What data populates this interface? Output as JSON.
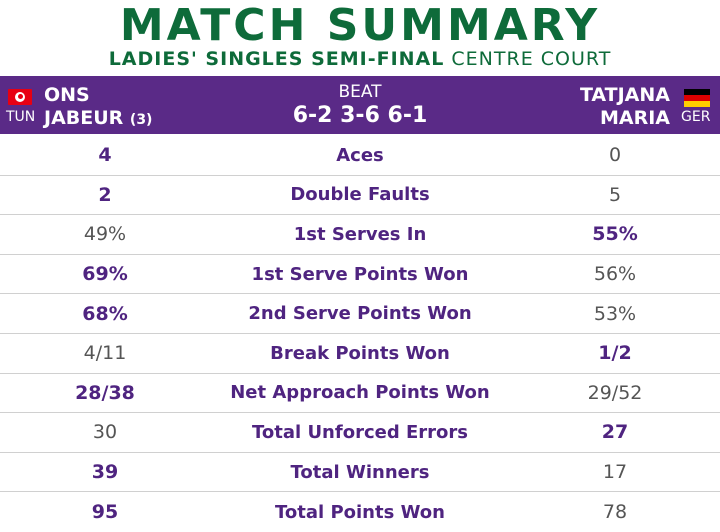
{
  "header": {
    "title": "MATCH SUMMARY",
    "subtitle_strong": "LADIES' SINGLES SEMI-FINAL",
    "subtitle_light": "CENTRE COURT"
  },
  "match": {
    "player1": {
      "first": "ONS",
      "last": "JABEUR",
      "seed": "(3)",
      "country": "TUN",
      "flag": "tunisia-flag-icon"
    },
    "player2": {
      "first": "TATJANA",
      "last": "MARIA",
      "country": "GER",
      "flag": "germany-flag-icon"
    },
    "result": "BEAT",
    "score": "6-2 3-6 6-1"
  },
  "colors": {
    "title_green": "#0e6b3a",
    "banner_purple": "#5a2a87",
    "stat_purple": "#4f2480",
    "muted_gray": "#555555"
  },
  "stats": [
    {
      "label": "Aces",
      "p1": "4",
      "p2": "0",
      "winner": "p1"
    },
    {
      "label": "Double Faults",
      "p1": "2",
      "p2": "5",
      "winner": "p1"
    },
    {
      "label": "1st Serves In",
      "p1": "49%",
      "p2": "55%",
      "winner": "p2"
    },
    {
      "label": "1st Serve Points Won",
      "p1": "69%",
      "p2": "56%",
      "winner": "p1"
    },
    {
      "label": "2nd Serve Points Won",
      "p1": "68%",
      "p2": "53%",
      "winner": "p1"
    },
    {
      "label": "Break Points Won",
      "p1": "4/11",
      "p2": "1/2",
      "winner": "p2"
    },
    {
      "label": "Net Approach Points Won",
      "p1": "28/38",
      "p2": "29/52",
      "winner": "p1"
    },
    {
      "label": "Total Unforced Errors",
      "p1": "30",
      "p2": "27",
      "winner": "p2"
    },
    {
      "label": "Total Winners",
      "p1": "39",
      "p2": "17",
      "winner": "p1"
    },
    {
      "label": "Total Points Won",
      "p1": "95",
      "p2": "78",
      "winner": "p1"
    }
  ]
}
